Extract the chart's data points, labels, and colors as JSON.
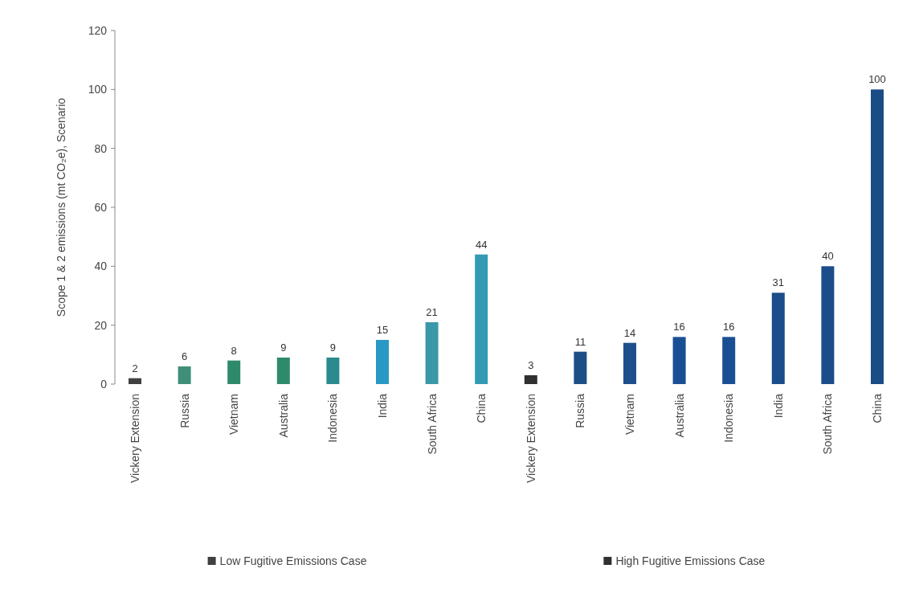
{
  "chart_data": {
    "type": "bar",
    "ylabel": "Scope 1 & 2 emissions (mt CO₂e), Scenario",
    "categories": [
      "Vickery Extension",
      "Russia",
      "Vietnam",
      "Australia",
      "Indonesia",
      "India",
      "South Africa",
      "China",
      "Vickery Extension",
      "Russia",
      "Vietnam",
      "Australia",
      "Indonesia",
      "India",
      "South Africa",
      "China"
    ],
    "series": [
      {
        "name": "Low Fugitive Emissions Case",
        "color": "#404040",
        "colors": [
          "#404040",
          "#3f8f78",
          "#2f8a6c",
          "#2f8a6c",
          "#2a8a8e",
          "#2a98c4",
          "#3a98a8",
          "#3499b4",
          null,
          null,
          null,
          null,
          null,
          null,
          null,
          null
        ],
        "values": [
          2,
          6,
          8,
          9,
          9,
          15,
          21,
          44,
          null,
          null,
          null,
          null,
          null,
          null,
          null,
          null
        ]
      },
      {
        "name": "High Fugitive Emissions Case",
        "color": "#303030",
        "colors": [
          null,
          null,
          null,
          null,
          null,
          null,
          null,
          null,
          "#303030",
          "#1c4f86",
          "#1c4f8c",
          "#1a4f94",
          "#1a4f94",
          "#1b4d8a",
          "#1b4d8a",
          "#1a4c86"
        ],
        "values": [
          null,
          null,
          null,
          null,
          null,
          null,
          null,
          null,
          3,
          11,
          14,
          16,
          16,
          31,
          40,
          100
        ]
      }
    ],
    "ylim": [
      0,
      120
    ],
    "yticks": [
      0,
      20,
      40,
      60,
      80,
      100,
      120
    ],
    "data_labels": true,
    "legend": "bottom",
    "grid": false
  }
}
